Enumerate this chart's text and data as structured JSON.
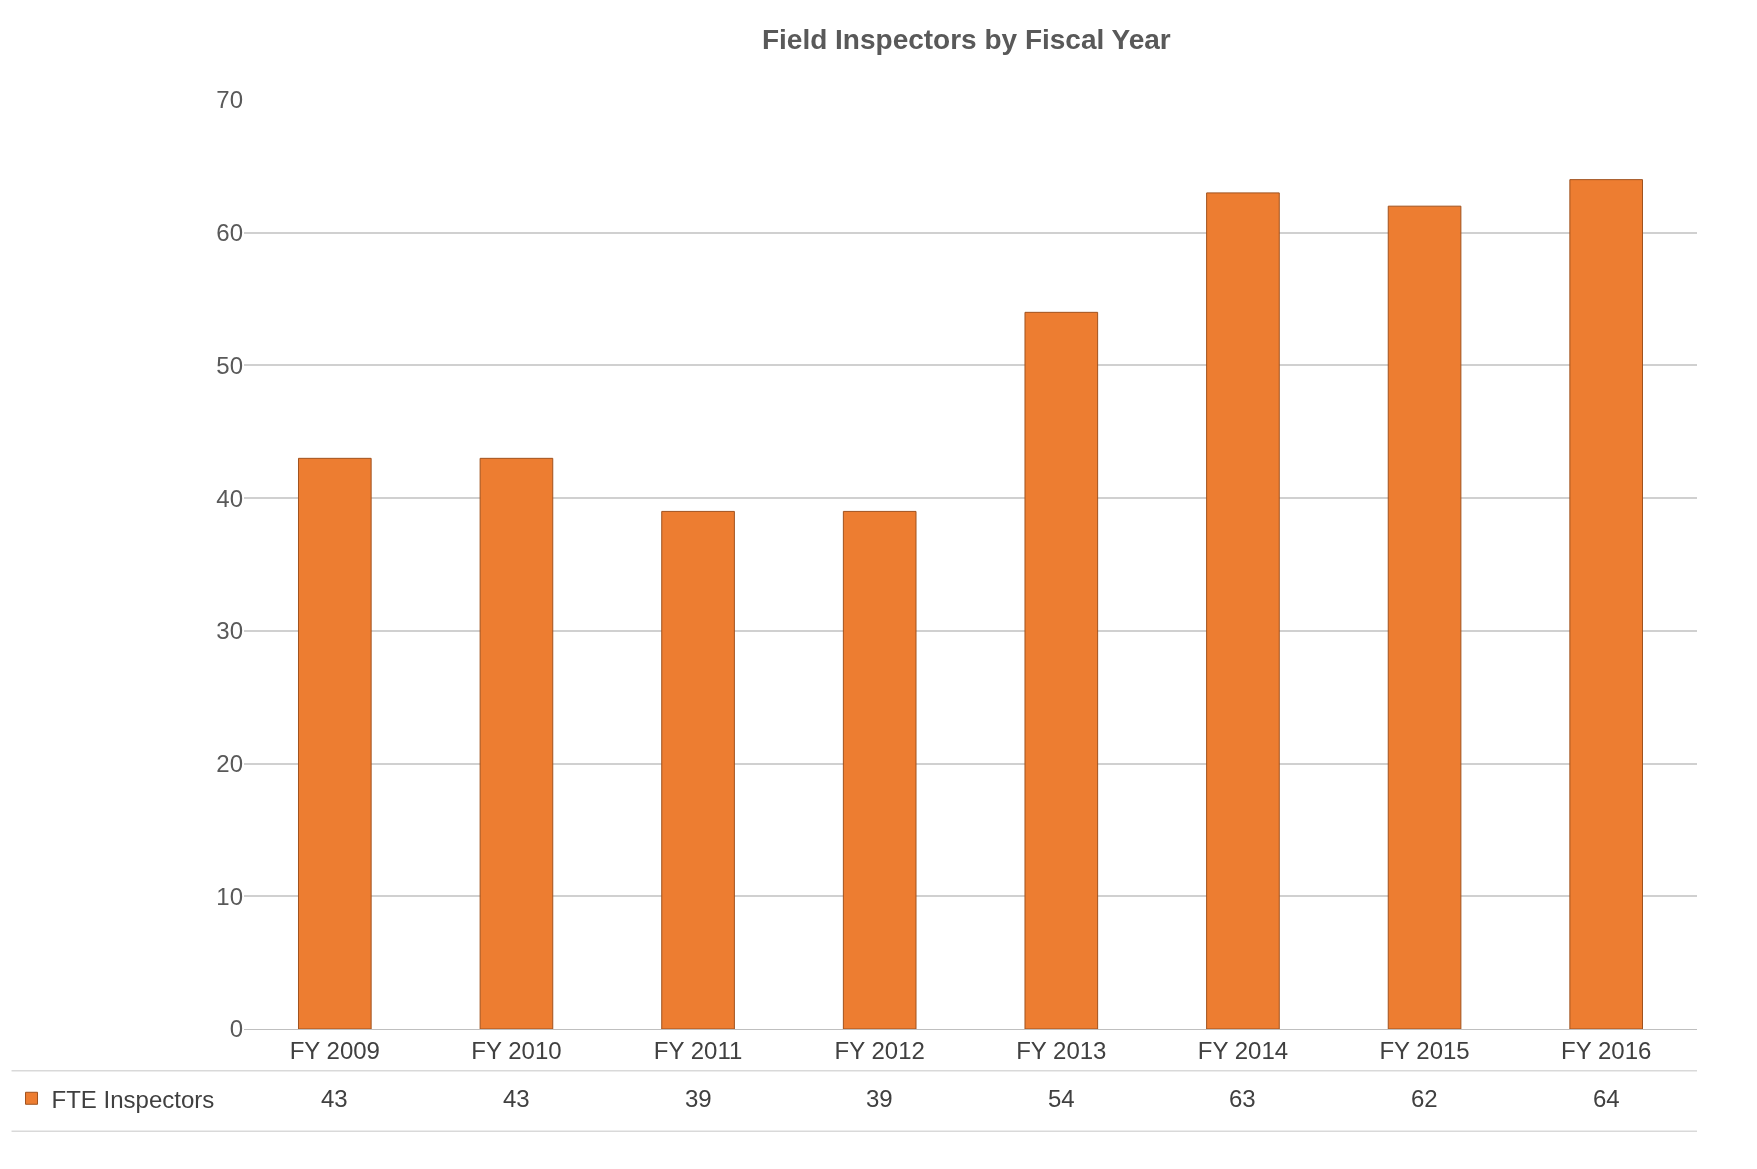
{
  "chart_data": {
    "type": "bar",
    "title": "Field Inspectors by Fiscal Year",
    "categories": [
      "FY 2009",
      "FY 2010",
      "FY 2011",
      "FY 2012",
      "FY 2013",
      "FY 2014",
      "FY 2015",
      "FY 2016"
    ],
    "series": [
      {
        "name": "FTE Inspectors",
        "color": "#ed7d31",
        "values": [
          43,
          43,
          39,
          39,
          54,
          63,
          62,
          64
        ]
      }
    ],
    "ylim": [
      0,
      70
    ],
    "yticks": [
      0,
      10,
      20,
      30,
      40,
      50,
      60,
      70
    ],
    "grid": "y",
    "legend": "bottom left",
    "data_labels": true
  }
}
